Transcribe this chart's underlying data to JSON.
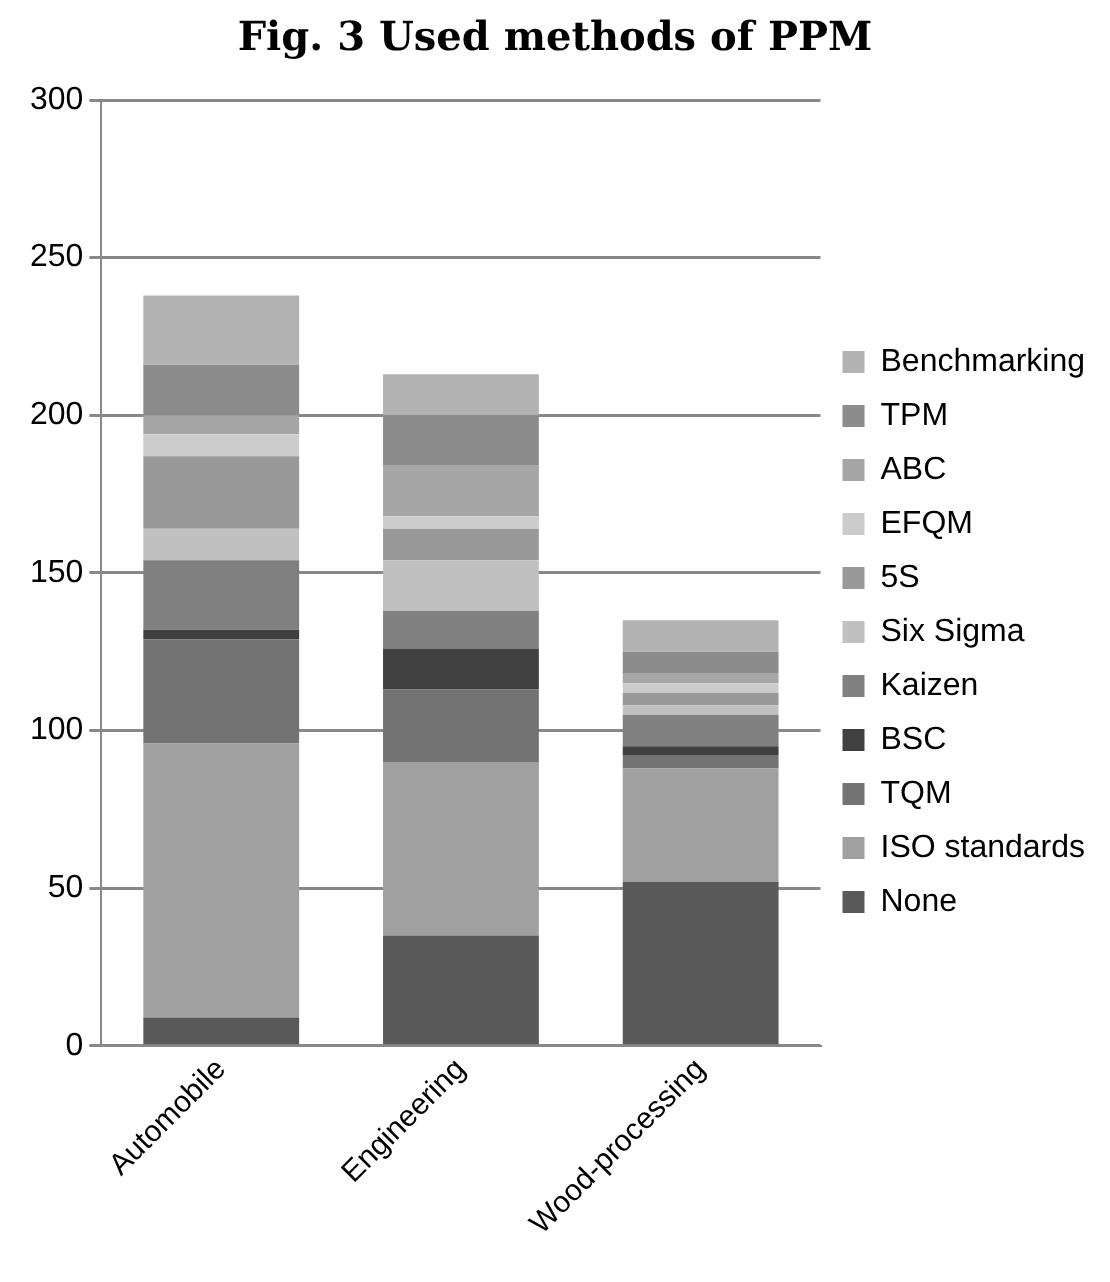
{
  "chart_data": {
    "type": "bar",
    "title": "Fig. 3 Used methods of PPM",
    "categories": [
      "Automobile",
      "Engineering",
      "Wood-processing"
    ],
    "stacked": true,
    "legend": "right",
    "grid": "y",
    "ylim": [
      0,
      300
    ],
    "yticks": [
      0,
      50,
      100,
      150,
      200,
      250,
      300
    ],
    "series": [
      {
        "name": "None",
        "color": "#595959",
        "values": [
          9,
          35,
          52
        ]
      },
      {
        "name": "ISO standards",
        "color": "#a0a0a0",
        "values": [
          87,
          55,
          36
        ]
      },
      {
        "name": "TQM",
        "color": "#737373",
        "values": [
          33,
          23,
          4
        ]
      },
      {
        "name": "BSC",
        "color": "#404040",
        "values": [
          3,
          13,
          3
        ]
      },
      {
        "name": "Kaizen",
        "color": "#808080",
        "values": [
          22,
          12,
          10
        ]
      },
      {
        "name": "Six Sigma",
        "color": "#c0c0c0",
        "values": [
          10,
          16,
          3
        ]
      },
      {
        "name": "5S",
        "color": "#999999",
        "values": [
          23,
          10,
          4
        ]
      },
      {
        "name": "EFQM",
        "color": "#cccccc",
        "values": [
          7,
          4,
          3
        ]
      },
      {
        "name": "ABC",
        "color": "#a6a6a6",
        "values": [
          6,
          16,
          3
        ]
      },
      {
        "name": "TPM",
        "color": "#8c8c8c",
        "values": [
          16,
          16,
          7
        ]
      },
      {
        "name": "Benchmarking",
        "color": "#b3b3b3",
        "values": [
          22,
          13,
          10
        ]
      }
    ]
  }
}
